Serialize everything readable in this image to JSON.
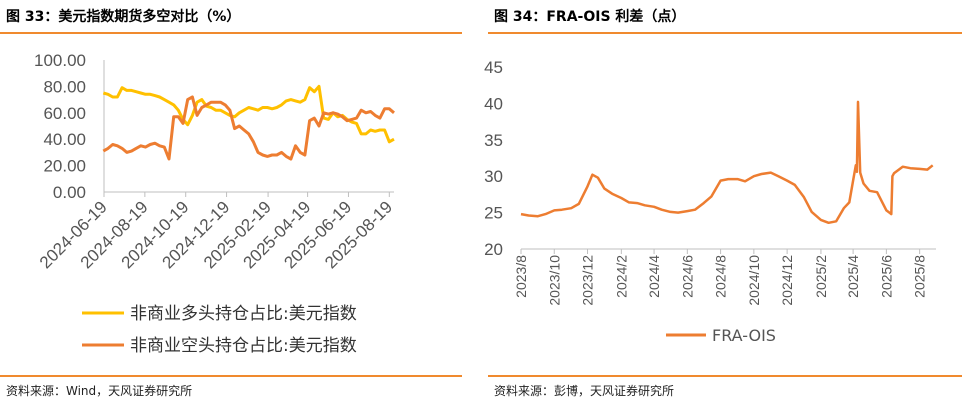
{
  "left": {
    "title": "图 33：美元指数期货多空对比（%）",
    "source": "资料来源：Wind，天风证券研究所"
  },
  "right": {
    "title": "图 34：FRA-OIS 利差（点）",
    "source": "资料来源：彭博，天风证券研究所"
  },
  "chart_data": [
    {
      "type": "line",
      "title": "",
      "ylim": [
        0,
        100
      ],
      "yticks": [
        "0.00",
        "20.00",
        "40.00",
        "60.00",
        "80.00",
        "100.00"
      ],
      "xlim": [
        "2024-06-19",
        "2025-08-26"
      ],
      "xticks": [
        "2024-06-19",
        "2024-08-19",
        "2024-10-19",
        "2024-12-19",
        "2025-02-19",
        "2025-04-19",
        "2025-06-19",
        "2025-08-19"
      ],
      "legend_position": "bottom",
      "grid": false,
      "series": [
        {
          "name": "非商业多头持仓占比:美元指数",
          "color": "#ffc000",
          "x": [
            "2024-06-18",
            "2024-06-25",
            "2024-07-02",
            "2024-07-09",
            "2024-07-16",
            "2024-07-23",
            "2024-07-30",
            "2024-08-06",
            "2024-08-13",
            "2024-08-20",
            "2024-08-27",
            "2024-09-03",
            "2024-09-10",
            "2024-09-17",
            "2024-09-24",
            "2024-10-01",
            "2024-10-08",
            "2024-10-15",
            "2024-10-22",
            "2024-10-29",
            "2024-11-05",
            "2024-11-12",
            "2024-11-19",
            "2024-11-26",
            "2024-12-03",
            "2024-12-10",
            "2024-12-17",
            "2024-12-24",
            "2024-12-31",
            "2025-01-07",
            "2025-01-14",
            "2025-01-21",
            "2025-01-28",
            "2025-02-04",
            "2025-02-11",
            "2025-02-18",
            "2025-02-25",
            "2025-03-04",
            "2025-03-11",
            "2025-03-18",
            "2025-03-25",
            "2025-04-01",
            "2025-04-08",
            "2025-04-15",
            "2025-04-22",
            "2025-04-29",
            "2025-05-06",
            "2025-05-13",
            "2025-05-20",
            "2025-05-27",
            "2025-06-03",
            "2025-06-10",
            "2025-06-17",
            "2025-06-24",
            "2025-07-01",
            "2025-07-08",
            "2025-07-15",
            "2025-07-22",
            "2025-07-29",
            "2025-08-05",
            "2025-08-12",
            "2025-08-19",
            "2025-08-26"
          ],
          "values": [
            75,
            74,
            72,
            72,
            79,
            77,
            77,
            76,
            75,
            74,
            74,
            73,
            72,
            70,
            68,
            66,
            62,
            55,
            51,
            58,
            68,
            70,
            65,
            64,
            62,
            62,
            60,
            58,
            57,
            60,
            62,
            64,
            63,
            62,
            64,
            64,
            63,
            64,
            66,
            69,
            70,
            69,
            68,
            70,
            79,
            76,
            80,
            56,
            55,
            60,
            57,
            58,
            55,
            53,
            52,
            44,
            44,
            47,
            46,
            47,
            47,
            38,
            40
          ]
        },
        {
          "name": "非商业空头持仓占比:美元指数",
          "color": "#ed7d31",
          "x": [
            "2024-06-18",
            "2024-06-25",
            "2024-07-02",
            "2024-07-09",
            "2024-07-16",
            "2024-07-23",
            "2024-07-30",
            "2024-08-06",
            "2024-08-13",
            "2024-08-20",
            "2024-08-27",
            "2024-09-03",
            "2024-09-10",
            "2024-09-17",
            "2024-09-24",
            "2024-10-01",
            "2024-10-08",
            "2024-10-15",
            "2024-10-22",
            "2024-10-29",
            "2024-11-05",
            "2024-11-12",
            "2024-11-19",
            "2024-11-26",
            "2024-12-03",
            "2024-12-10",
            "2024-12-17",
            "2024-12-24",
            "2024-12-31",
            "2025-01-07",
            "2025-01-14",
            "2025-01-21",
            "2025-01-28",
            "2025-02-04",
            "2025-02-11",
            "2025-02-18",
            "2025-02-25",
            "2025-03-04",
            "2025-03-11",
            "2025-03-18",
            "2025-03-25",
            "2025-04-01",
            "2025-04-08",
            "2025-04-15",
            "2025-04-22",
            "2025-04-29",
            "2025-05-06",
            "2025-05-13",
            "2025-05-20",
            "2025-05-27",
            "2025-06-03",
            "2025-06-10",
            "2025-06-17",
            "2025-06-24",
            "2025-07-01",
            "2025-07-08",
            "2025-07-15",
            "2025-07-22",
            "2025-07-29",
            "2025-08-05",
            "2025-08-12",
            "2025-08-19",
            "2025-08-26"
          ],
          "values": [
            31,
            33,
            36,
            35,
            33,
            30,
            31,
            33,
            35,
            34,
            36,
            37,
            35,
            34,
            25,
            57,
            57,
            52,
            70,
            72,
            58,
            64,
            66,
            68,
            68,
            68,
            66,
            62,
            48,
            50,
            47,
            44,
            38,
            30,
            28,
            27,
            28,
            28,
            30,
            27,
            25,
            35,
            30,
            28,
            54,
            56,
            50,
            60,
            59,
            60,
            59,
            57,
            54,
            55,
            56,
            62,
            60,
            61,
            58,
            56,
            63,
            63,
            60
          ]
        }
      ]
    },
    {
      "type": "line",
      "title": "",
      "ylim": [
        20,
        45
      ],
      "yticks": [
        "20",
        "25",
        "30",
        "35",
        "40",
        "45"
      ],
      "xlim": [
        "2023-08-01",
        "2025-08-31"
      ],
      "xticks": [
        "2023/8",
        "2023/10",
        "2023/12",
        "2024/2",
        "2024/4",
        "2024/6",
        "2024/8",
        "2024/10",
        "2024/12",
        "2025/2",
        "2025/4",
        "2025/6",
        "2025/8"
      ],
      "legend_position": "bottom",
      "grid": false,
      "series": [
        {
          "name": "FRA-OIS",
          "color": "#ed7d31",
          "x": [
            "2023-08-01",
            "2023-08-15",
            "2023-09-01",
            "2023-09-15",
            "2023-10-01",
            "2023-10-15",
            "2023-11-01",
            "2023-11-15",
            "2023-12-01",
            "2023-12-10",
            "2023-12-20",
            "2024-01-01",
            "2024-01-15",
            "2024-02-01",
            "2024-02-15",
            "2024-03-01",
            "2024-03-15",
            "2024-04-01",
            "2024-04-15",
            "2024-05-01",
            "2024-05-15",
            "2024-06-01",
            "2024-06-15",
            "2024-07-01",
            "2024-07-15",
            "2024-08-01",
            "2024-08-15",
            "2024-09-01",
            "2024-09-15",
            "2024-10-01",
            "2024-10-15",
            "2024-11-01",
            "2024-11-15",
            "2024-12-01",
            "2024-12-15",
            "2025-01-01",
            "2025-01-15",
            "2025-02-01",
            "2025-02-15",
            "2025-03-01",
            "2025-03-15",
            "2025-03-25",
            "2025-04-01",
            "2025-04-06",
            "2025-04-08",
            "2025-04-10",
            "2025-04-14",
            "2025-04-20",
            "2025-05-01",
            "2025-05-15",
            "2025-06-01",
            "2025-06-10",
            "2025-06-12",
            "2025-06-15",
            "2025-07-01",
            "2025-07-15",
            "2025-08-01",
            "2025-08-15",
            "2025-08-25"
          ],
          "values": [
            24.8,
            24.6,
            24.5,
            24.8,
            25.3,
            25.4,
            25.6,
            26.2,
            28.6,
            30.2,
            29.8,
            28.3,
            27.6,
            27.0,
            26.4,
            26.3,
            26.0,
            25.8,
            25.4,
            25.1,
            25.0,
            25.2,
            25.4,
            26.3,
            27.2,
            29.4,
            29.6,
            29.6,
            29.3,
            30.0,
            30.3,
            30.5,
            30.0,
            29.4,
            28.8,
            27.1,
            25.1,
            24.0,
            23.6,
            23.8,
            25.6,
            26.4,
            29.4,
            31.5,
            30.6,
            40.2,
            30.5,
            29.0,
            28.0,
            27.8,
            25.3,
            24.8,
            30.0,
            30.4,
            31.3,
            31.1,
            31.0,
            30.9,
            31.5
          ]
        }
      ]
    }
  ]
}
